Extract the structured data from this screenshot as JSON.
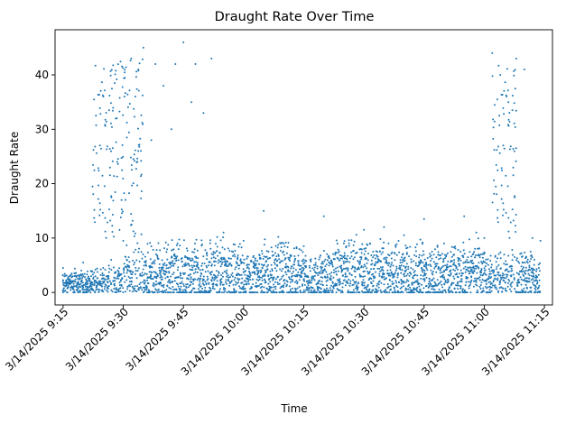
{
  "chart_data": {
    "type": "scatter",
    "title": "Draught Rate Over Time",
    "xlabel": "Time",
    "ylabel": "Draught Rate",
    "x_ticks": [
      "3/14/2025 9:15",
      "3/14/2025 9:30",
      "3/14/2025 9:45",
      "3/14/2025 10:00",
      "3/14/2025 10:15",
      "3/14/2025 10:30",
      "3/14/2025 10:45",
      "3/14/2025 11:00",
      "3/14/2025 11:15"
    ],
    "y_ticks": [
      0,
      10,
      20,
      30,
      40
    ],
    "xlim": [
      "3/14/2025 9:13",
      "3/14/2025 11:17"
    ],
    "ylim": [
      -2.3,
      48.3
    ],
    "grid": false,
    "marker_color": "#1f77b4",
    "series": [
      {
        "x": [
          "3/14/2025 9:15",
          "3/14/2025 9:17",
          "3/14/2025 9:20",
          "3/14/2025 9:22",
          "3/14/2025 9:25",
          "3/14/2025 9:27",
          "3/14/2025 9:30",
          "3/14/2025 9:32",
          "3/14/2025 9:33",
          "3/14/2025 9:35",
          "3/14/2025 9:37",
          "3/14/2025 9:38",
          "3/14/2025 9:40",
          "3/14/2025 9:42",
          "3/14/2025 9:43",
          "3/14/2025 9:45",
          "3/14/2025 9:47",
          "3/14/2025 9:48",
          "3/14/2025 9:50",
          "3/14/2025 9:52",
          "3/14/2025 9:55",
          "3/14/2025 10:00",
          "3/14/2025 10:05",
          "3/14/2025 10:10",
          "3/14/2025 10:15",
          "3/14/2025 10:20",
          "3/14/2025 10:25",
          "3/14/2025 10:30",
          "3/14/2025 10:35",
          "3/14/2025 10:40",
          "3/14/2025 10:45",
          "3/14/2025 10:50",
          "3/14/2025 10:55",
          "3/14/2025 10:58",
          "3/14/2025 11:00",
          "3/14/2025 11:02",
          "3/14/2025 11:04",
          "3/14/2025 11:06",
          "3/14/2025 11:08",
          "3/14/2025 11:10",
          "3/14/2025 11:12",
          "3/14/2025 11:14"
        ],
        "y": [
          4.5,
          2.0,
          5.5,
          3.0,
          4.5,
          6.0,
          9.5,
          43.0,
          36.0,
          45.0,
          28.0,
          42.0,
          38.0,
          30.0,
          42.0,
          46.0,
          35.0,
          42.0,
          33.0,
          43.0,
          11.0,
          9.5,
          15.0,
          9.0,
          8.5,
          14.0,
          9.0,
          11.5,
          12.0,
          10.5,
          13.5,
          9.0,
          14.0,
          11.0,
          10.0,
          44.0,
          40.0,
          35.0,
          43.0,
          41.0,
          10.0,
          9.5
        ]
      }
    ]
  }
}
